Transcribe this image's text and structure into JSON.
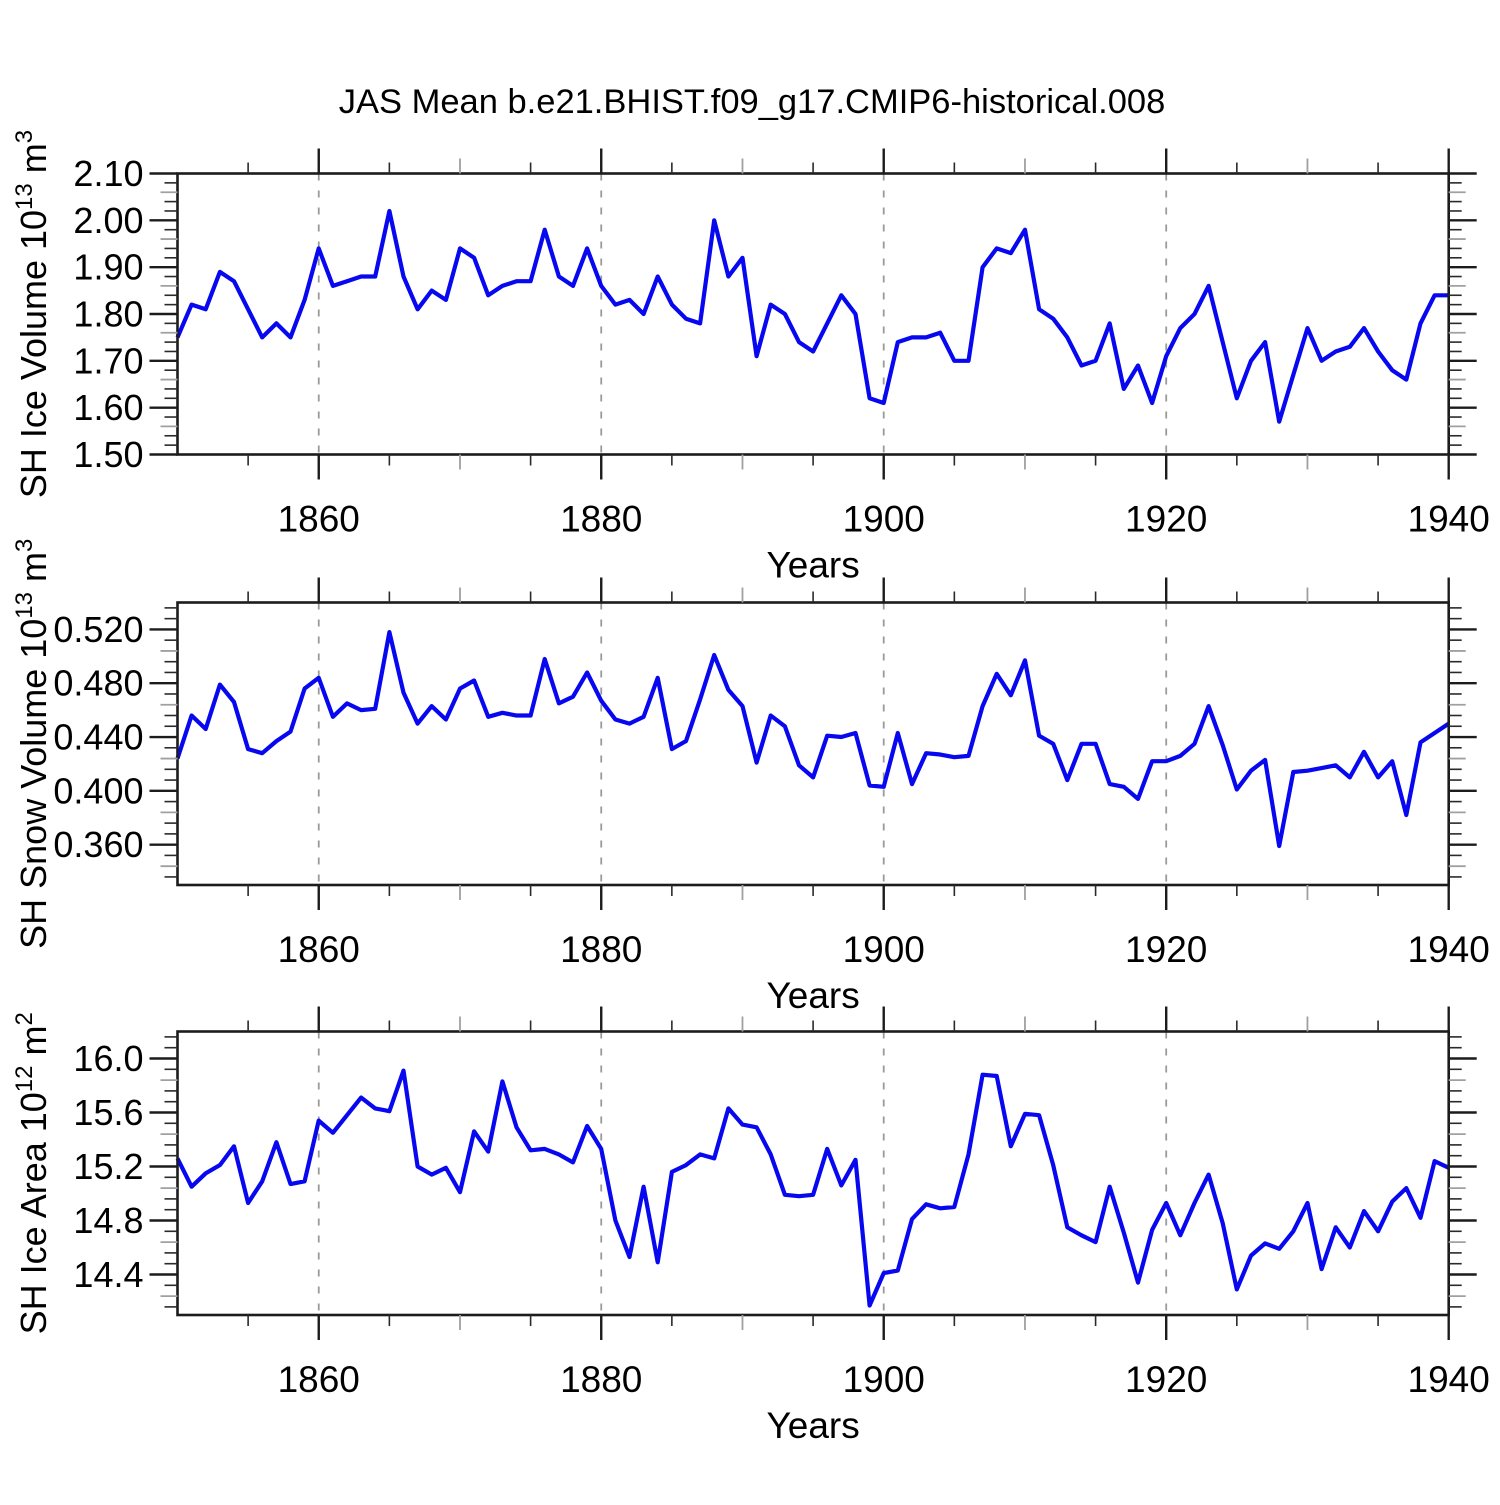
{
  "title": "JAS Mean b.e21.BHIST.f09_g17.CMIP6-historical.008",
  "colors": {
    "line": "#0808f0",
    "frame": "#1c1c1c",
    "grid": "#9a9a9a",
    "minor_tick": "#2a2a2a",
    "medium_tick": "#a0a0a0",
    "text": "#000000"
  },
  "x_axis": {
    "label": "Years",
    "min": 1850,
    "max": 1940,
    "major_ticks": [
      1860,
      1880,
      1900,
      1920,
      1940
    ],
    "tick_labels": [
      "1860",
      "1880",
      "1900",
      "1920",
      "1940"
    ],
    "minor_step": 5,
    "gridlines": [
      1860,
      1880,
      1900,
      1920
    ]
  },
  "years": [
    1850,
    1851,
    1852,
    1853,
    1854,
    1855,
    1856,
    1857,
    1858,
    1859,
    1860,
    1861,
    1862,
    1863,
    1864,
    1865,
    1866,
    1867,
    1868,
    1869,
    1870,
    1871,
    1872,
    1873,
    1874,
    1875,
    1876,
    1877,
    1878,
    1879,
    1880,
    1881,
    1882,
    1883,
    1884,
    1885,
    1886,
    1887,
    1888,
    1889,
    1890,
    1891,
    1892,
    1893,
    1894,
    1895,
    1896,
    1897,
    1898,
    1899,
    1900,
    1901,
    1902,
    1903,
    1904,
    1905,
    1906,
    1907,
    1908,
    1909,
    1910,
    1911,
    1912,
    1913,
    1914,
    1915,
    1916,
    1917,
    1918,
    1919,
    1920,
    1921,
    1922,
    1923,
    1924,
    1925,
    1926,
    1927,
    1928,
    1929,
    1930,
    1931,
    1932,
    1933,
    1934,
    1935,
    1936,
    1937,
    1938,
    1939,
    1940
  ],
  "chart_data": [
    {
      "type": "line",
      "ylabel": "SH Ice Volume 10^{13} m^{3}",
      "ylim": [
        1.5,
        2.1
      ],
      "ymajor": [
        2.1,
        2.0,
        1.9,
        1.8,
        1.7,
        1.6,
        1.5
      ],
      "ytick_labels": [
        "2.10",
        "2.00",
        "1.90",
        "1.80",
        "1.70",
        "1.60",
        "1.50"
      ],
      "yminor_step": 0.02,
      "values": [
        1.75,
        1.82,
        1.81,
        1.89,
        1.87,
        1.81,
        1.75,
        1.78,
        1.75,
        1.83,
        1.94,
        1.86,
        1.87,
        1.88,
        1.88,
        2.02,
        1.88,
        1.81,
        1.85,
        1.83,
        1.94,
        1.92,
        1.84,
        1.86,
        1.87,
        1.87,
        1.98,
        1.88,
        1.86,
        1.94,
        1.86,
        1.82,
        1.83,
        1.8,
        1.88,
        1.82,
        1.79,
        1.78,
        2.0,
        1.88,
        1.92,
        1.71,
        1.82,
        1.8,
        1.74,
        1.72,
        1.78,
        1.84,
        1.8,
        1.62,
        1.61,
        1.74,
        1.75,
        1.75,
        1.76,
        1.7,
        1.7,
        1.9,
        1.94,
        1.93,
        1.98,
        1.81,
        1.79,
        1.75,
        1.69,
        1.7,
        1.78,
        1.64,
        1.69,
        1.61,
        1.71,
        1.77,
        1.8,
        1.86,
        1.74,
        1.62,
        1.7,
        1.74,
        1.57,
        1.67,
        1.77,
        1.7,
        1.72,
        1.73,
        1.77,
        1.72,
        1.68,
        1.66,
        1.78,
        1.84,
        1.84
      ]
    },
    {
      "type": "line",
      "ylabel": "SH Snow Volume 10^{13} m^{3}",
      "ylim": [
        0.33,
        0.54
      ],
      "ymajor": [
        0.52,
        0.48,
        0.44,
        0.4,
        0.36
      ],
      "ytick_labels": [
        "0.520",
        "0.480",
        "0.440",
        "0.400",
        "0.360"
      ],
      "yminor_step": 0.008,
      "values": [
        0.424,
        0.456,
        0.446,
        0.479,
        0.466,
        0.431,
        0.428,
        0.437,
        0.444,
        0.476,
        0.484,
        0.455,
        0.465,
        0.46,
        0.461,
        0.518,
        0.473,
        0.45,
        0.463,
        0.453,
        0.476,
        0.482,
        0.455,
        0.458,
        0.456,
        0.456,
        0.498,
        0.465,
        0.47,
        0.488,
        0.467,
        0.453,
        0.45,
        0.455,
        0.484,
        0.431,
        0.437,
        0.468,
        0.501,
        0.475,
        0.463,
        0.421,
        0.456,
        0.448,
        0.419,
        0.41,
        0.441,
        0.44,
        0.443,
        0.404,
        0.403,
        0.443,
        0.405,
        0.428,
        0.427,
        0.425,
        0.426,
        0.463,
        0.487,
        0.471,
        0.497,
        0.441,
        0.435,
        0.408,
        0.435,
        0.435,
        0.405,
        0.403,
        0.394,
        0.422,
        0.422,
        0.426,
        0.435,
        0.463,
        0.434,
        0.401,
        0.415,
        0.423,
        0.359,
        0.414,
        0.415,
        0.417,
        0.419,
        0.41,
        0.429,
        0.41,
        0.422,
        0.382,
        0.436,
        0.443,
        0.45
      ]
    },
    {
      "type": "line",
      "ylabel": "SH Ice Area 10^{12} m^{2}",
      "ylim": [
        14.1,
        16.2
      ],
      "ymajor": [
        16.0,
        15.6,
        15.2,
        14.8,
        14.4
      ],
      "ytick_labels": [
        "16.0",
        "15.6",
        "15.2",
        "14.8",
        "14.4"
      ],
      "yminor_step": 0.08,
      "values": [
        15.26,
        15.05,
        15.15,
        15.21,
        15.35,
        14.93,
        15.09,
        15.38,
        15.07,
        15.09,
        15.54,
        15.45,
        15.58,
        15.71,
        15.63,
        15.61,
        15.91,
        15.2,
        15.14,
        15.19,
        15.01,
        15.46,
        15.31,
        15.83,
        15.49,
        15.32,
        15.33,
        15.29,
        15.23,
        15.5,
        15.33,
        14.8,
        14.53,
        15.05,
        14.49,
        15.16,
        15.21,
        15.29,
        15.26,
        15.63,
        15.51,
        15.49,
        15.29,
        14.99,
        14.98,
        14.99,
        15.33,
        15.06,
        15.25,
        14.17,
        14.41,
        14.43,
        14.81,
        14.92,
        14.89,
        14.9,
        15.29,
        15.88,
        15.87,
        15.35,
        15.59,
        15.58,
        15.21,
        14.75,
        14.69,
        14.64,
        15.05,
        14.71,
        14.34,
        14.73,
        14.93,
        14.69,
        14.93,
        15.14,
        14.78,
        14.29,
        14.54,
        14.63,
        14.59,
        14.72,
        14.93,
        14.44,
        14.75,
        14.6,
        14.87,
        14.72,
        14.94,
        15.04,
        14.82,
        15.24,
        15.19
      ]
    }
  ]
}
